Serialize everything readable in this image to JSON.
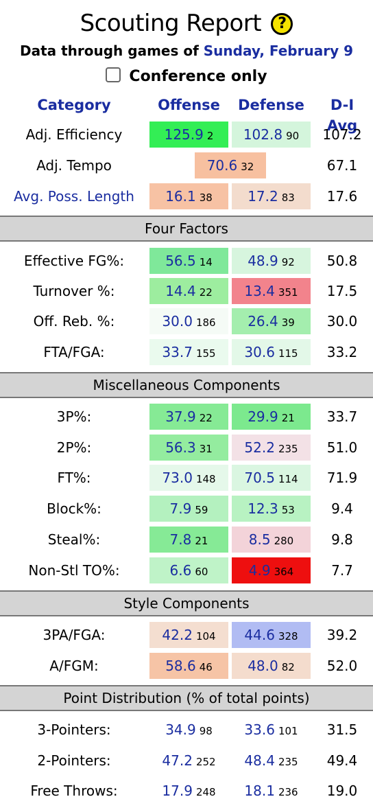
{
  "header": {
    "title": "Scouting Report",
    "help_icon": "?",
    "subtitle_prefix": "Data through games of",
    "subtitle_date": "Sunday, February 9",
    "conference_only_label": "Conference only"
  },
  "columns": {
    "category": "Category",
    "offense": "Offense",
    "defense": "Defense",
    "avg": "D-I Avg"
  },
  "summary": {
    "adj_efficiency": {
      "label": "Adj. Efficiency",
      "off": "125.9",
      "off_rank": "2",
      "def": "102.8",
      "def_rank": "90",
      "avg": "107.2",
      "off_color": "#33ee55",
      "def_color": "#d4f5dc"
    },
    "adj_tempo": {
      "label": "Adj. Tempo",
      "val": "70.6",
      "rank": "32",
      "avg": "67.1",
      "color": "#f7c0a0"
    },
    "poss_length": {
      "label": "Avg. Poss. Length",
      "off": "16.1",
      "off_rank": "38",
      "def": "17.2",
      "def_rank": "83",
      "avg": "17.6",
      "off_color": "#f7c2a4",
      "def_color": "#f3dccd"
    }
  },
  "sections": {
    "four_factors": "Four Factors",
    "misc": "Miscellaneous Components",
    "style": "Style Components",
    "point_dist": "Point Distribution (% of total points)"
  },
  "four_factors": [
    {
      "label": "Effective FG%:",
      "off": "56.5",
      "off_rank": "14",
      "def": "48.9",
      "def_rank": "92",
      "avg": "50.8",
      "off_color": "#7fe89a",
      "def_color": "#d7f5de"
    },
    {
      "label": "Turnover %:",
      "off": "14.4",
      "off_rank": "22",
      "def": "13.4",
      "def_rank": "351",
      "avg": "17.5",
      "off_color": "#9ded9f",
      "def_color": "#f2838c"
    },
    {
      "label": "Off. Reb. %:",
      "off": "30.0",
      "off_rank": "186",
      "def": "26.4",
      "def_rank": "39",
      "avg": "30.0",
      "off_color": "#f5fbf6",
      "def_color": "#a4eeae"
    },
    {
      "label": "FTA/FGA:",
      "off": "33.7",
      "off_rank": "155",
      "def": "30.6",
      "def_rank": "115",
      "avg": "33.2",
      "off_color": "#eafaee",
      "def_color": "#e3f8e8"
    }
  ],
  "misc": [
    {
      "label": "3P%:",
      "off": "37.9",
      "off_rank": "22",
      "def": "29.9",
      "def_rank": "21",
      "avg": "33.7",
      "off_color": "#86ea95",
      "def_color": "#7ce98e"
    },
    {
      "label": "2P%:",
      "off": "56.3",
      "off_rank": "31",
      "def": "52.2",
      "def_rank": "235",
      "avg": "51.0",
      "off_color": "#94ec9f",
      "def_color": "#f3e1e6"
    },
    {
      "label": "FT%:",
      "off": "73.0",
      "off_rank": "148",
      "def": "70.5",
      "def_rank": "114",
      "avg": "71.9",
      "off_color": "#e5f8ea",
      "def_color": "#daf6e1"
    },
    {
      "label": "Block%:",
      "off": "7.9",
      "off_rank": "59",
      "def": "12.3",
      "def_rank": "53",
      "avg": "9.4",
      "off_color": "#b4f1bf",
      "def_color": "#b8f2c2"
    },
    {
      "label": "Steal%:",
      "off": "7.8",
      "off_rank": "21",
      "def": "8.5",
      "def_rank": "280",
      "avg": "9.8",
      "off_color": "#86ea96",
      "def_color": "#f3d3d9"
    },
    {
      "label": "Non-Stl TO%:",
      "off": "6.6",
      "off_rank": "60",
      "def": "4.9",
      "def_rank": "364",
      "avg": "7.7",
      "off_color": "#bff3c8",
      "def_color": "#ee0f0f"
    }
  ],
  "style": [
    {
      "label": "3PA/FGA:",
      "off": "42.2",
      "off_rank": "104",
      "def": "44.6",
      "def_rank": "328",
      "avg": "39.2",
      "off_color": "#f4ded0",
      "def_color": "#b1bcf3"
    },
    {
      "label": "A/FGM:",
      "off": "58.6",
      "off_rank": "46",
      "def": "48.0",
      "def_rank": "82",
      "avg": "52.0",
      "off_color": "#f6c4a6",
      "def_color": "#f4dccd"
    }
  ],
  "point_dist": [
    {
      "label": "3-Pointers:",
      "off": "34.9",
      "off_rank": "98",
      "def": "33.6",
      "def_rank": "101",
      "avg": "31.5"
    },
    {
      "label": "2-Pointers:",
      "off": "47.2",
      "off_rank": "252",
      "def": "48.4",
      "def_rank": "235",
      "avg": "49.4"
    },
    {
      "label": "Free Throws:",
      "off": "17.9",
      "off_rank": "248",
      "def": "18.1",
      "def_rank": "236",
      "avg": "19.0"
    }
  ]
}
